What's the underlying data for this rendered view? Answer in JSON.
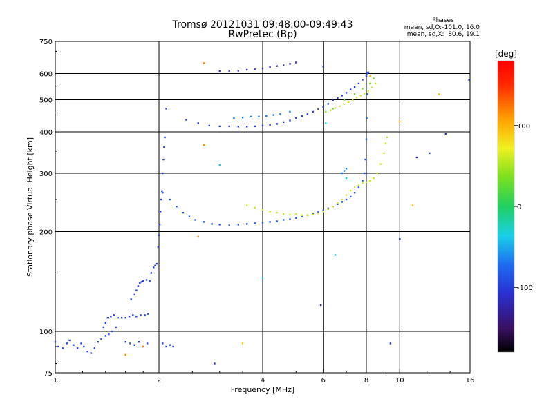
{
  "chart_data": {
    "type": "scatter",
    "title": "Tromsø 20121031 09:48:00-09:49:43",
    "subtitle": "RwPretec (Bp)",
    "phase_header": "Phases",
    "phase_stats": [
      "mean, sd,O:-101.0, 16.0",
      "mean, sd,X:  80.6, 19.1"
    ],
    "xlabel": "Frequency [MHz]",
    "ylabel": "Stationary phase Virtual Height [km]",
    "x_scale": "log",
    "y_scale": "log",
    "xlim": [
      1,
      16
    ],
    "ylim": [
      75,
      750
    ],
    "x_ticks": [
      1,
      2,
      4,
      6,
      8,
      10,
      16
    ],
    "x_tick_labels": [
      "1",
      "2",
      "4",
      "6",
      "8",
      "10",
      "16"
    ],
    "y_ticks": [
      75,
      100,
      200,
      300,
      400,
      500,
      600,
      750
    ],
    "y_tick_labels": [
      "75",
      "100",
      "200",
      "300",
      "400",
      "500",
      "600",
      "750"
    ],
    "x_grid": [
      2,
      4,
      6,
      8,
      10
    ],
    "y_grid": [
      100,
      200,
      300,
      400,
      500,
      600
    ],
    "colorbar": {
      "label": "[deg]",
      "range": [
        -180,
        180
      ],
      "ticks": [
        100,
        0,
        -100
      ],
      "tick_labels": [
        "100",
        "0",
        "-100"
      ]
    },
    "series": [
      {
        "color": "#2a40e8",
        "points": [
          [
            1.0,
            93
          ],
          [
            1.02,
            90
          ],
          [
            1.05,
            89
          ],
          [
            1.08,
            92
          ],
          [
            1.1,
            94
          ],
          [
            1.13,
            91
          ],
          [
            1.16,
            89
          ],
          [
            1.19,
            92
          ],
          [
            1.21,
            90
          ],
          [
            1.24,
            87
          ],
          [
            1.27,
            86
          ],
          [
            1.3,
            89
          ],
          [
            1.33,
            93
          ],
          [
            1.36,
            95
          ],
          [
            1.4,
            97
          ],
          [
            1.43,
            98
          ],
          [
            1.46,
            100
          ],
          [
            1.5,
            103
          ],
          [
            1.38,
            103
          ],
          [
            1.4,
            106
          ],
          [
            1.42,
            110
          ],
          [
            1.45,
            111
          ],
          [
            1.48,
            112
          ],
          [
            1.52,
            110
          ],
          [
            1.56,
            110
          ],
          [
            1.6,
            110
          ],
          [
            1.64,
            111
          ],
          [
            1.68,
            112
          ],
          [
            1.72,
            111
          ],
          [
            1.77,
            112
          ],
          [
            1.82,
            112
          ],
          [
            1.86,
            113
          ],
          [
            1.66,
            125
          ],
          [
            1.7,
            129
          ],
          [
            1.72,
            133
          ],
          [
            1.74,
            137
          ],
          [
            1.76,
            140
          ],
          [
            1.78,
            141
          ],
          [
            1.8,
            142
          ],
          [
            1.84,
            143
          ],
          [
            1.88,
            142
          ],
          [
            1.9,
            150
          ],
          [
            1.93,
            156
          ],
          [
            1.95,
            158
          ],
          [
            1.97,
            160
          ],
          [
            1.99,
            180
          ],
          [
            2.0,
            195
          ],
          [
            2.01,
            210
          ],
          [
            2.02,
            230
          ],
          [
            2.03,
            250
          ],
          [
            2.04,
            265
          ],
          [
            2.05,
            300
          ],
          [
            2.06,
            330
          ],
          [
            2.07,
            360
          ],
          [
            2.08,
            385
          ],
          [
            2.1,
            470
          ],
          [
            1.6,
            93
          ],
          [
            1.65,
            92
          ],
          [
            1.7,
            91
          ],
          [
            1.75,
            93
          ],
          [
            1.8,
            90
          ],
          [
            1.85,
            92
          ],
          [
            2.05,
            92
          ],
          [
            2.1,
            90
          ],
          [
            2.15,
            91
          ],
          [
            2.2,
            90
          ]
        ]
      },
      {
        "color": "#1f5cf0",
        "points": [
          [
            2.05,
            262
          ],
          [
            2.15,
            250
          ],
          [
            2.25,
            238
          ],
          [
            2.35,
            228
          ],
          [
            2.45,
            222
          ],
          [
            2.55,
            217
          ],
          [
            2.7,
            214
          ],
          [
            2.85,
            211
          ],
          [
            3.0,
            210
          ],
          [
            3.2,
            209
          ],
          [
            3.4,
            210
          ],
          [
            3.6,
            211
          ],
          [
            3.8,
            212
          ],
          [
            4.0,
            213
          ],
          [
            4.2,
            214
          ],
          [
            4.4,
            215
          ],
          [
            4.6,
            217
          ],
          [
            4.8,
            218
          ],
          [
            5.0,
            220
          ],
          [
            5.2,
            222
          ],
          [
            5.4,
            224
          ],
          [
            5.6,
            226
          ],
          [
            5.8,
            229
          ],
          [
            6.0,
            232
          ],
          [
            6.2,
            235
          ],
          [
            6.4,
            238
          ],
          [
            6.6,
            242
          ],
          [
            6.8,
            246
          ],
          [
            7.0,
            250
          ],
          [
            7.2,
            255
          ],
          [
            7.4,
            262
          ],
          [
            7.6,
            272
          ],
          [
            7.8,
            285
          ],
          [
            7.9,
            300
          ],
          [
            7.95,
            330
          ],
          [
            8.0,
            380
          ],
          [
            8.02,
            440
          ],
          [
            8.05,
            520
          ],
          [
            8.07,
            600
          ]
        ]
      },
      {
        "color": "#2a3fd8",
        "points": [
          [
            2.4,
            435
          ],
          [
            2.6,
            425
          ],
          [
            2.8,
            418
          ],
          [
            3.0,
            416
          ],
          [
            3.2,
            416
          ],
          [
            3.4,
            415
          ],
          [
            3.6,
            415
          ],
          [
            3.8,
            416
          ],
          [
            4.0,
            418
          ],
          [
            4.2,
            420
          ],
          [
            4.4,
            423
          ],
          [
            4.6,
            428
          ],
          [
            4.8,
            433
          ],
          [
            5.0,
            440
          ],
          [
            5.2,
            446
          ],
          [
            5.4,
            453
          ],
          [
            5.6,
            460
          ],
          [
            5.8,
            468
          ],
          [
            6.0,
            476
          ],
          [
            6.2,
            486
          ],
          [
            6.4,
            497
          ],
          [
            6.6,
            506
          ],
          [
            6.8,
            515
          ],
          [
            7.0,
            525
          ],
          [
            7.2,
            537
          ],
          [
            7.4,
            547
          ],
          [
            7.6,
            560
          ],
          [
            7.8,
            575
          ],
          [
            8.0,
            590
          ],
          [
            8.1,
            605
          ]
        ]
      },
      {
        "color": "#3d35b8",
        "points": [
          [
            3.0,
            610
          ],
          [
            3.2,
            611
          ],
          [
            3.4,
            612
          ],
          [
            3.6,
            616
          ],
          [
            3.8,
            618
          ],
          [
            4.0,
            622
          ],
          [
            4.2,
            627
          ],
          [
            4.4,
            632
          ],
          [
            4.6,
            636
          ],
          [
            4.8,
            642
          ],
          [
            5.0,
            648
          ]
        ]
      },
      {
        "color": "#1b7af0",
        "points": [
          [
            3.3,
            440
          ],
          [
            3.5,
            442
          ],
          [
            3.7,
            445
          ],
          [
            3.9,
            445
          ],
          [
            4.1,
            447
          ],
          [
            4.3,
            450
          ],
          [
            4.5,
            453
          ],
          [
            4.8,
            460
          ],
          [
            6.8,
            300
          ],
          [
            6.9,
            305
          ],
          [
            7.0,
            310
          ]
        ]
      },
      {
        "color": "#cfe62a",
        "points": [
          [
            3.6,
            240
          ],
          [
            3.8,
            236
          ],
          [
            4.0,
            233
          ],
          [
            4.2,
            230
          ],
          [
            4.4,
            228
          ],
          [
            4.6,
            226
          ],
          [
            4.8,
            225
          ],
          [
            5.0,
            226
          ],
          [
            5.2,
            224
          ],
          [
            5.4,
            224
          ],
          [
            5.6,
            225
          ],
          [
            5.8,
            227
          ],
          [
            6.0,
            230
          ],
          [
            6.2,
            234
          ],
          [
            6.4,
            238
          ],
          [
            6.6,
            244
          ],
          [
            6.8,
            250
          ],
          [
            7.0,
            258
          ],
          [
            7.2,
            266
          ],
          [
            7.4,
            272
          ],
          [
            7.6,
            276
          ],
          [
            7.8,
            280
          ],
          [
            8.0,
            282
          ],
          [
            8.2,
            285
          ],
          [
            8.4,
            290
          ],
          [
            8.6,
            300
          ],
          [
            8.8,
            320
          ],
          [
            9.0,
            345
          ],
          [
            9.1,
            370
          ],
          [
            9.2,
            385
          ],
          [
            6.3,
            465
          ],
          [
            6.5,
            472
          ],
          [
            6.7,
            478
          ],
          [
            6.9,
            485
          ],
          [
            7.1,
            492
          ],
          [
            7.3,
            500
          ],
          [
            7.5,
            508
          ],
          [
            7.7,
            515
          ],
          [
            7.9,
            522
          ],
          [
            8.1,
            532
          ],
          [
            8.3,
            545
          ],
          [
            8.5,
            560
          ]
        ]
      },
      {
        "color": "#7ad83a",
        "points": [
          [
            6.1,
            460
          ],
          [
            6.4,
            470
          ],
          [
            6.9,
            500
          ],
          [
            7.4,
            520
          ],
          [
            7.8,
            540
          ],
          [
            8.2,
            560
          ],
          [
            8.4,
            580
          ]
        ]
      },
      {
        "color": "#ff8a00",
        "points": [
          [
            2.7,
            645
          ],
          [
            2.7,
            365
          ],
          [
            2.6,
            193
          ],
          [
            1.8,
            90
          ],
          [
            1.6,
            85
          ]
        ]
      },
      {
        "color": "#ffc000",
        "points": [
          [
            3.5,
            92
          ],
          [
            8.2,
            590
          ],
          [
            10.0,
            430
          ],
          [
            13.0,
            520
          ],
          [
            10.9,
            240
          ]
        ]
      },
      {
        "color": "#18c8e8",
        "points": [
          [
            3.0,
            318
          ],
          [
            4.0,
            145
          ],
          [
            6.1,
            425
          ],
          [
            7.0,
            290
          ],
          [
            6.5,
            170
          ]
        ]
      },
      {
        "color": "#2630b0",
        "points": [
          [
            6.0,
            630
          ],
          [
            5.9,
            120
          ],
          [
            9.4,
            92
          ],
          [
            10.0,
            190
          ],
          [
            12.2,
            345
          ],
          [
            13.6,
            395
          ],
          [
            15.9,
            575
          ],
          [
            11.2,
            335
          ],
          [
            2.9,
            80
          ]
        ]
      }
    ]
  }
}
